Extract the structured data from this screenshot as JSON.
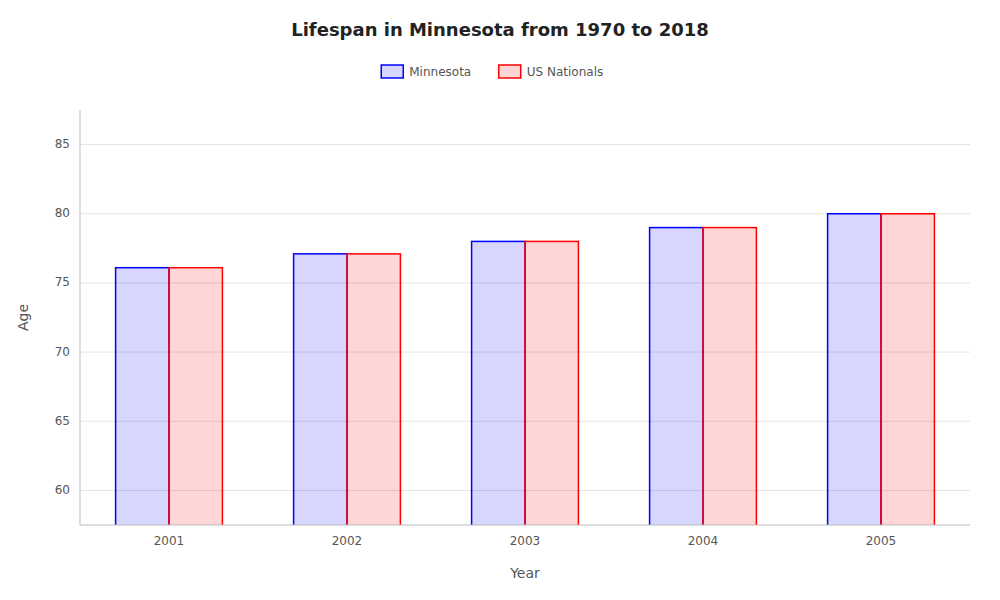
{
  "chart_data": {
    "type": "bar",
    "title": "Lifespan in Minnesota from 1970 to 2018",
    "x_label": "Year",
    "y_label": "Age",
    "categories": [
      "2001",
      "2002",
      "2003",
      "2004",
      "2005"
    ],
    "series": [
      {
        "name": "Minnesota",
        "color": "#0000FF",
        "values": [
          76.1,
          77.1,
          78.0,
          79.0,
          80.0
        ]
      },
      {
        "name": "US Nationals",
        "color": "#FF0000",
        "values": [
          76.1,
          77.1,
          78.0,
          79.0,
          80.0
        ]
      }
    ],
    "ylim": [
      57.5,
      87.5
    ],
    "yticks": [
      60,
      65,
      70,
      75,
      80,
      85
    ],
    "grid": true,
    "legend": "top"
  }
}
